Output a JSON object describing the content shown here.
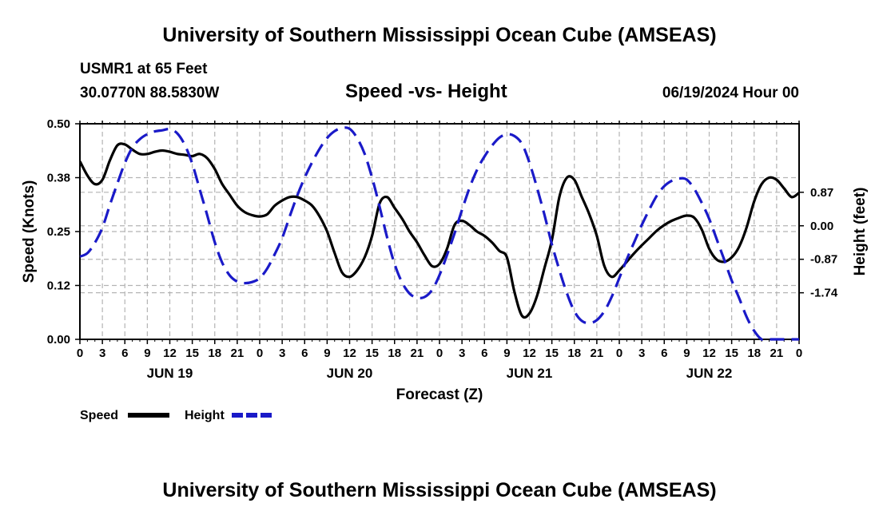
{
  "header": {
    "title": "University of Southern Mississippi Ocean Cube (AMSEAS)",
    "station": "USMR1 at 65 Feet",
    "coords": "30.0770N  88.5830W",
    "subtitle": "Speed -vs- Height",
    "run": "06/19/2024 Hour 00"
  },
  "footer": {
    "title": "University of Southern Mississippi Ocean Cube (AMSEAS)"
  },
  "legend": {
    "speed_label": "Speed",
    "height_label": "Height"
  },
  "colors": {
    "speed": "#000000",
    "height": "#1a1ac8",
    "grid": "#b4b4b4"
  },
  "chart_data": {
    "type": "line",
    "title": "Speed -vs- Height",
    "xlabel": "Forecast (Z)",
    "ylabel": "Speed (Knots)",
    "y2label": "Height (feet)",
    "xlim": [
      0,
      96
    ],
    "ylim": [
      0,
      0.5
    ],
    "y2lim": [
      -2.95,
      2.65
    ],
    "y_ticks": [
      0.0,
      0.125,
      0.25,
      0.375,
      0.5
    ],
    "y_tick_labels": [
      "0.00",
      "0.12",
      "0.25",
      "0.38",
      "0.50"
    ],
    "y2_ticks": [
      -1.74,
      -0.87,
      0.0,
      0.87
    ],
    "y2_tick_labels": [
      "-1.74",
      "-0.87",
      "0.00",
      "0.87"
    ],
    "x_ticks": [
      0,
      3,
      6,
      9,
      12,
      15,
      18,
      21,
      24,
      27,
      30,
      33,
      36,
      39,
      42,
      45,
      48,
      51,
      54,
      57,
      60,
      63,
      66,
      69,
      72,
      75,
      78,
      81,
      84,
      87,
      90,
      93,
      96
    ],
    "x_tick_labels": [
      "0",
      "3",
      "6",
      "9",
      "12",
      "15",
      "18",
      "21",
      "0",
      "3",
      "6",
      "9",
      "12",
      "15",
      "18",
      "21",
      "0",
      "3",
      "6",
      "9",
      "12",
      "15",
      "18",
      "21",
      "0",
      "3",
      "6",
      "9",
      "12",
      "15",
      "18",
      "21",
      "0"
    ],
    "day_labels": [
      {
        "hour": 12,
        "label": "JUN 19"
      },
      {
        "hour": 36,
        "label": "JUN 20"
      },
      {
        "hour": 60,
        "label": "JUN 21"
      },
      {
        "hour": 84,
        "label": "JUN 22"
      }
    ],
    "series": [
      {
        "name": "Speed",
        "axis": "left",
        "style": "solid",
        "x": [
          0,
          1,
          2,
          3,
          4,
          5,
          6,
          7,
          8,
          9,
          10,
          11,
          12,
          13,
          14,
          15,
          16,
          17,
          18,
          19,
          20,
          21,
          22,
          23,
          24,
          25,
          26,
          27,
          28,
          29,
          30,
          31,
          32,
          33,
          34,
          35,
          36,
          37,
          38,
          39,
          40,
          41,
          42,
          43,
          44,
          45,
          46,
          47,
          48,
          49,
          50,
          51,
          52,
          53,
          54,
          55,
          56,
          57,
          58,
          59,
          60,
          61,
          62,
          63,
          64,
          65,
          66,
          67,
          68,
          69,
          70,
          71,
          72,
          73,
          74,
          75,
          76,
          77,
          78,
          79,
          80,
          81,
          82,
          83,
          84,
          85,
          86,
          87,
          88,
          89,
          90,
          91,
          92,
          93,
          94,
          95,
          96
        ],
        "values": [
          0.413,
          0.38,
          0.36,
          0.37,
          0.415,
          0.45,
          0.452,
          0.44,
          0.43,
          0.43,
          0.435,
          0.438,
          0.435,
          0.43,
          0.428,
          0.425,
          0.43,
          0.42,
          0.395,
          0.36,
          0.335,
          0.31,
          0.295,
          0.288,
          0.285,
          0.29,
          0.31,
          0.322,
          0.33,
          0.33,
          0.322,
          0.31,
          0.285,
          0.25,
          0.2,
          0.155,
          0.145,
          0.16,
          0.19,
          0.24,
          0.315,
          0.33,
          0.305,
          0.28,
          0.25,
          0.225,
          0.195,
          0.17,
          0.175,
          0.21,
          0.265,
          0.275,
          0.265,
          0.25,
          0.24,
          0.225,
          0.205,
          0.19,
          0.11,
          0.055,
          0.06,
          0.1,
          0.165,
          0.23,
          0.33,
          0.375,
          0.37,
          0.33,
          0.29,
          0.24,
          0.17,
          0.145,
          0.16,
          0.18,
          0.2,
          0.218,
          0.235,
          0.252,
          0.265,
          0.275,
          0.282,
          0.287,
          0.282,
          0.255,
          0.21,
          0.185,
          0.18,
          0.19,
          0.215,
          0.26,
          0.32,
          0.36,
          0.375,
          0.37,
          0.35,
          0.33,
          0.34
        ]
      },
      {
        "name": "Height",
        "axis": "right",
        "style": "dashed",
        "x": [
          0,
          1,
          2,
          3,
          4,
          5,
          6,
          7,
          8,
          9,
          10,
          11,
          12,
          13,
          14,
          15,
          16,
          17,
          18,
          19,
          20,
          21,
          22,
          23,
          24,
          25,
          26,
          27,
          28,
          29,
          30,
          31,
          32,
          33,
          34,
          35,
          36,
          37,
          38,
          39,
          40,
          41,
          42,
          43,
          44,
          45,
          46,
          47,
          48,
          49,
          50,
          51,
          52,
          53,
          54,
          55,
          56,
          57,
          58,
          59,
          60,
          61,
          62,
          63,
          64,
          65,
          66,
          67,
          68,
          69,
          70,
          71,
          72,
          73,
          74,
          75,
          76,
          77,
          78,
          79,
          80,
          81,
          82,
          83,
          84,
          85,
          86,
          87,
          88,
          89,
          90,
          91,
          92,
          93,
          94,
          95,
          96
        ],
        "values": [
          -0.8,
          -0.71,
          -0.44,
          -0.05,
          0.54,
          1.1,
          1.63,
          2.03,
          2.25,
          2.38,
          2.45,
          2.48,
          2.51,
          2.4,
          2.1,
          1.61,
          0.94,
          0.27,
          -0.43,
          -0.96,
          -1.29,
          -1.45,
          -1.49,
          -1.46,
          -1.36,
          -1.11,
          -0.74,
          -0.32,
          0.24,
          0.78,
          1.25,
          1.65,
          2.0,
          2.28,
          2.46,
          2.54,
          2.52,
          2.28,
          1.87,
          1.25,
          0.5,
          -0.3,
          -0.99,
          -1.47,
          -1.76,
          -1.87,
          -1.85,
          -1.67,
          -1.28,
          -0.76,
          -0.2,
          0.41,
          0.98,
          1.45,
          1.8,
          2.08,
          2.29,
          2.38,
          2.33,
          2.13,
          1.64,
          1.0,
          0.29,
          -0.48,
          -1.15,
          -1.75,
          -2.22,
          -2.47,
          -2.53,
          -2.45,
          -2.22,
          -1.84,
          -1.36,
          -0.87,
          -0.42,
          0.02,
          0.42,
          0.78,
          1.03,
          1.17,
          1.23,
          1.2,
          0.96,
          0.6,
          0.18,
          -0.35,
          -0.88,
          -1.42,
          -1.88,
          -2.37,
          -2.73,
          -2.95,
          -2.95,
          -2.95,
          -2.95,
          -2.95,
          -2.95
        ]
      }
    ]
  }
}
